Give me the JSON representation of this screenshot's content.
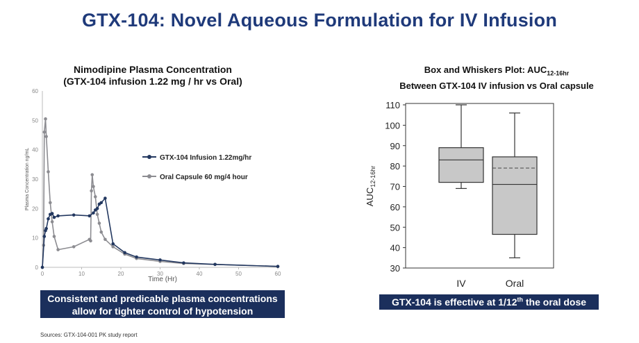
{
  "slide": {
    "title": "GTX-104: Novel Aqueous Formulation for IV Infusion",
    "footnote": "Sources: GTX-104-001 PK study report",
    "left_banner": "Consistent and predicable plasma concentrations allow for tighter control of hypotension",
    "right_banner_prefix": "GTX-104 is effective at 1/12",
    "right_banner_sup": "th",
    "right_banner_suffix": " the oral dose"
  },
  "chart_data": [
    {
      "type": "line",
      "title": "Nimodipine Plasma Concentration",
      "subtitle": "(GTX-104 infusion 1.22 mg / hr vs Oral)",
      "xlabel": "Time (Hr)",
      "ylabel": "Plasma Concentration ng/mL",
      "xlim": [
        0,
        60
      ],
      "ylim": [
        0,
        60
      ],
      "xticks": [
        0,
        10,
        20,
        30,
        40,
        50,
        60
      ],
      "yticks": [
        0,
        10,
        20,
        30,
        40,
        50,
        60
      ],
      "legend_position": "center-right",
      "series": [
        {
          "name": "GTX-104 Infusion 1.22mg/hr",
          "color": "#22375f",
          "x": [
            0,
            0.5,
            0.8,
            1.0,
            1.5,
            2.0,
            2.5,
            3.0,
            4.0,
            8.0,
            12.0,
            13.0,
            13.5,
            14.0,
            14.5,
            15.0,
            16.0,
            18.0,
            21.0,
            24.0,
            30.0,
            36.0,
            44.0,
            60.0
          ],
          "y": [
            0,
            10.5,
            12.5,
            13.2,
            16.5,
            18.0,
            18.3,
            17.0,
            17.5,
            17.8,
            17.5,
            18.5,
            19.5,
            20.0,
            21.5,
            22.0,
            23.5,
            8.0,
            5.0,
            3.5,
            2.5,
            1.5,
            1.0,
            0.3
          ]
        },
        {
          "name": "Oral Capsule 60 mg/4 hour",
          "color": "#8c8c91",
          "x": [
            0,
            0.3,
            0.5,
            0.8,
            1.0,
            1.5,
            2.0,
            2.5,
            3.0,
            4.0,
            8.0,
            12.0,
            12.3,
            12.5,
            12.7,
            13.0,
            13.5,
            14.0,
            14.5,
            15.0,
            16.0,
            18.0,
            21.0,
            24.0,
            30.0,
            36.0,
            44.0,
            60.0
          ],
          "y": [
            0,
            7.5,
            46.0,
            50.5,
            44.5,
            32.5,
            22.0,
            15.5,
            10.5,
            6.0,
            7.0,
            9.5,
            9.0,
            26.0,
            31.5,
            27.5,
            24.0,
            18.0,
            15.0,
            12.0,
            9.5,
            7.0,
            4.5,
            3.0,
            2.0,
            1.3,
            1.0,
            0.3
          ]
        }
      ]
    },
    {
      "type": "box",
      "title": "Box and Whiskers Plot: AUC",
      "title_sub": "12-16hr",
      "subtitle": "Between GTX-104 IV infusion vs Oral capsule",
      "ylabel": "AUC",
      "ylabel_sub": "12-16hr",
      "ylim": [
        30,
        110
      ],
      "yticks": [
        30,
        40,
        50,
        60,
        70,
        80,
        90,
        100,
        110
      ],
      "box_color": "#c8c8c8",
      "categories": [
        "IV",
        "Oral"
      ],
      "boxes": [
        {
          "min": 69,
          "q1": 72,
          "median": 83,
          "q3": 89,
          "max": 110,
          "mean": null
        },
        {
          "min": 35,
          "q1": 46.5,
          "median": 71,
          "q3": 84.5,
          "max": 106,
          "mean": 79
        }
      ]
    }
  ]
}
